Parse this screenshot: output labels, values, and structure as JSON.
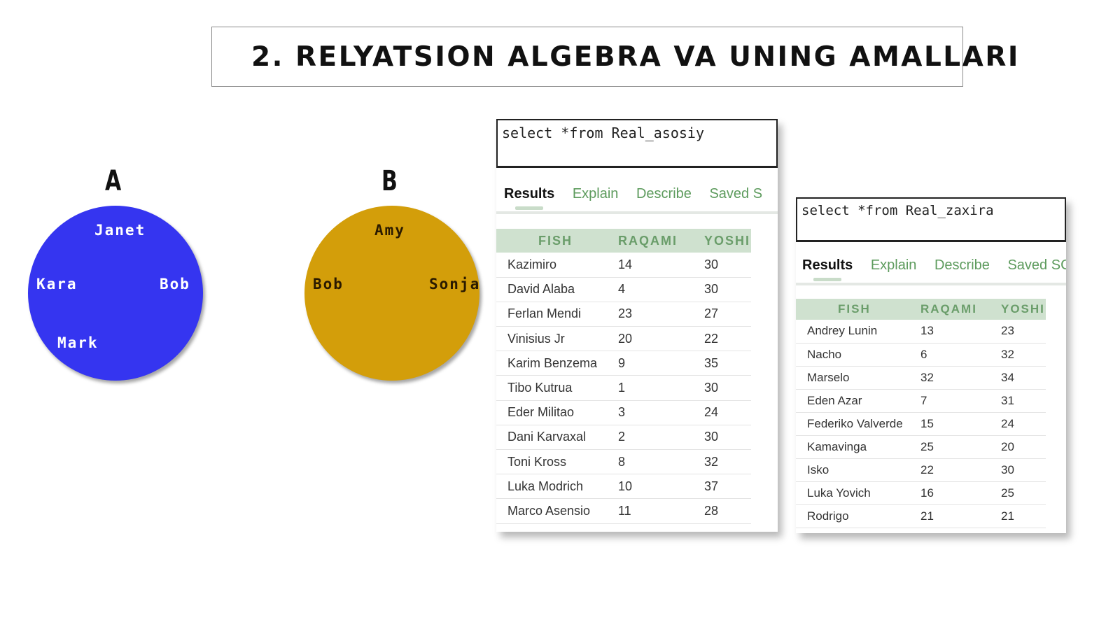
{
  "title": "2. RELYATSION ALGEBRA VA UNING AMALLARI",
  "sets": [
    {
      "label": "A",
      "color": "#3535f0",
      "text_color": "#ffffff",
      "members": [
        "Janet",
        "Kara",
        "Bob",
        "Mark"
      ]
    },
    {
      "label": "B",
      "color": "#d39e0a",
      "text_color": "#2a1a00",
      "members": [
        "Amy",
        "Bob",
        "Sonja"
      ]
    }
  ],
  "panels": [
    {
      "query": "select *from Real_asosiy",
      "tabs": [
        {
          "label": "Results",
          "active": true
        },
        {
          "label": "Explain",
          "active": false
        },
        {
          "label": "Describe",
          "active": false
        },
        {
          "label": "Saved S",
          "active": false
        }
      ],
      "columns": [
        "FISH",
        "RAQAMI",
        "YOSHI"
      ],
      "rows": [
        [
          "Kazimiro",
          "14",
          "30"
        ],
        [
          "David Alaba",
          "4",
          "30"
        ],
        [
          "Ferlan Mendi",
          "23",
          "27"
        ],
        [
          "Vinisius Jr",
          "20",
          "22"
        ],
        [
          "Karim Benzema",
          "9",
          "35"
        ],
        [
          "Tibo Kutrua",
          "1",
          "30"
        ],
        [
          "Eder Militao",
          "3",
          "24"
        ],
        [
          "Dani Karvaxal",
          "2",
          "30"
        ],
        [
          "Toni Kross",
          "8",
          "32"
        ],
        [
          "Luka Modrich",
          "10",
          "37"
        ],
        [
          "Marco Asensio",
          "11",
          "28"
        ]
      ]
    },
    {
      "query": "select *from Real_zaxira",
      "tabs": [
        {
          "label": "Results",
          "active": true
        },
        {
          "label": "Explain",
          "active": false
        },
        {
          "label": "Describe",
          "active": false
        },
        {
          "label": "Saved SC",
          "active": false
        }
      ],
      "columns": [
        "FISH",
        "RAQAMI",
        "YOSHI"
      ],
      "rows": [
        [
          "Andrey Lunin",
          "13",
          "23"
        ],
        [
          "Nacho",
          "6",
          "32"
        ],
        [
          "Marselo",
          "32",
          "34"
        ],
        [
          "Eden Azar",
          "7",
          "31"
        ],
        [
          "Federiko Valverde",
          "15",
          "24"
        ],
        [
          "Kamavinga",
          "25",
          "20"
        ],
        [
          "Isko",
          "22",
          "30"
        ],
        [
          "Luka Yovich",
          "16",
          "25"
        ],
        [
          "Rodrigo",
          "21",
          "21"
        ]
      ]
    }
  ]
}
